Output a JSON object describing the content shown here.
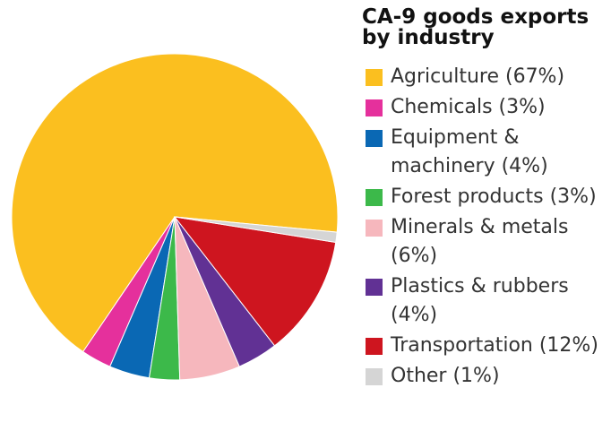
{
  "chart_data": {
    "type": "pie",
    "title": "CA-9 goods exports by industry",
    "legend_position": "right",
    "slices": [
      {
        "label": "Agriculture (67%)",
        "name": "Agriculture",
        "value": 67,
        "color": "#fbbf1f"
      },
      {
        "label": "Chemicals (3%)",
        "name": "Chemicals",
        "value": 3,
        "color": "#e5309c"
      },
      {
        "label": "Equipment & machinery (4%)",
        "name": "Equipment & machinery",
        "value": 4,
        "color": "#0a68b4"
      },
      {
        "label": "Forest products (3%)",
        "name": "Forest products",
        "value": 3,
        "color": "#3cb94a"
      },
      {
        "label": "Minerals & metals (6%)",
        "name": "Minerals & metals",
        "value": 6,
        "color": "#f6b7bd"
      },
      {
        "label": "Plastics & rubbers (4%)",
        "name": "Plastics & rubbers",
        "value": 4,
        "color": "#613194"
      },
      {
        "label": "Transportation (12%)",
        "name": "Transportation",
        "value": 12,
        "color": "#ce151f"
      },
      {
        "label": "Other (1%)",
        "name": "Other",
        "value": 1,
        "color": "#d5d5d5"
      }
    ]
  }
}
